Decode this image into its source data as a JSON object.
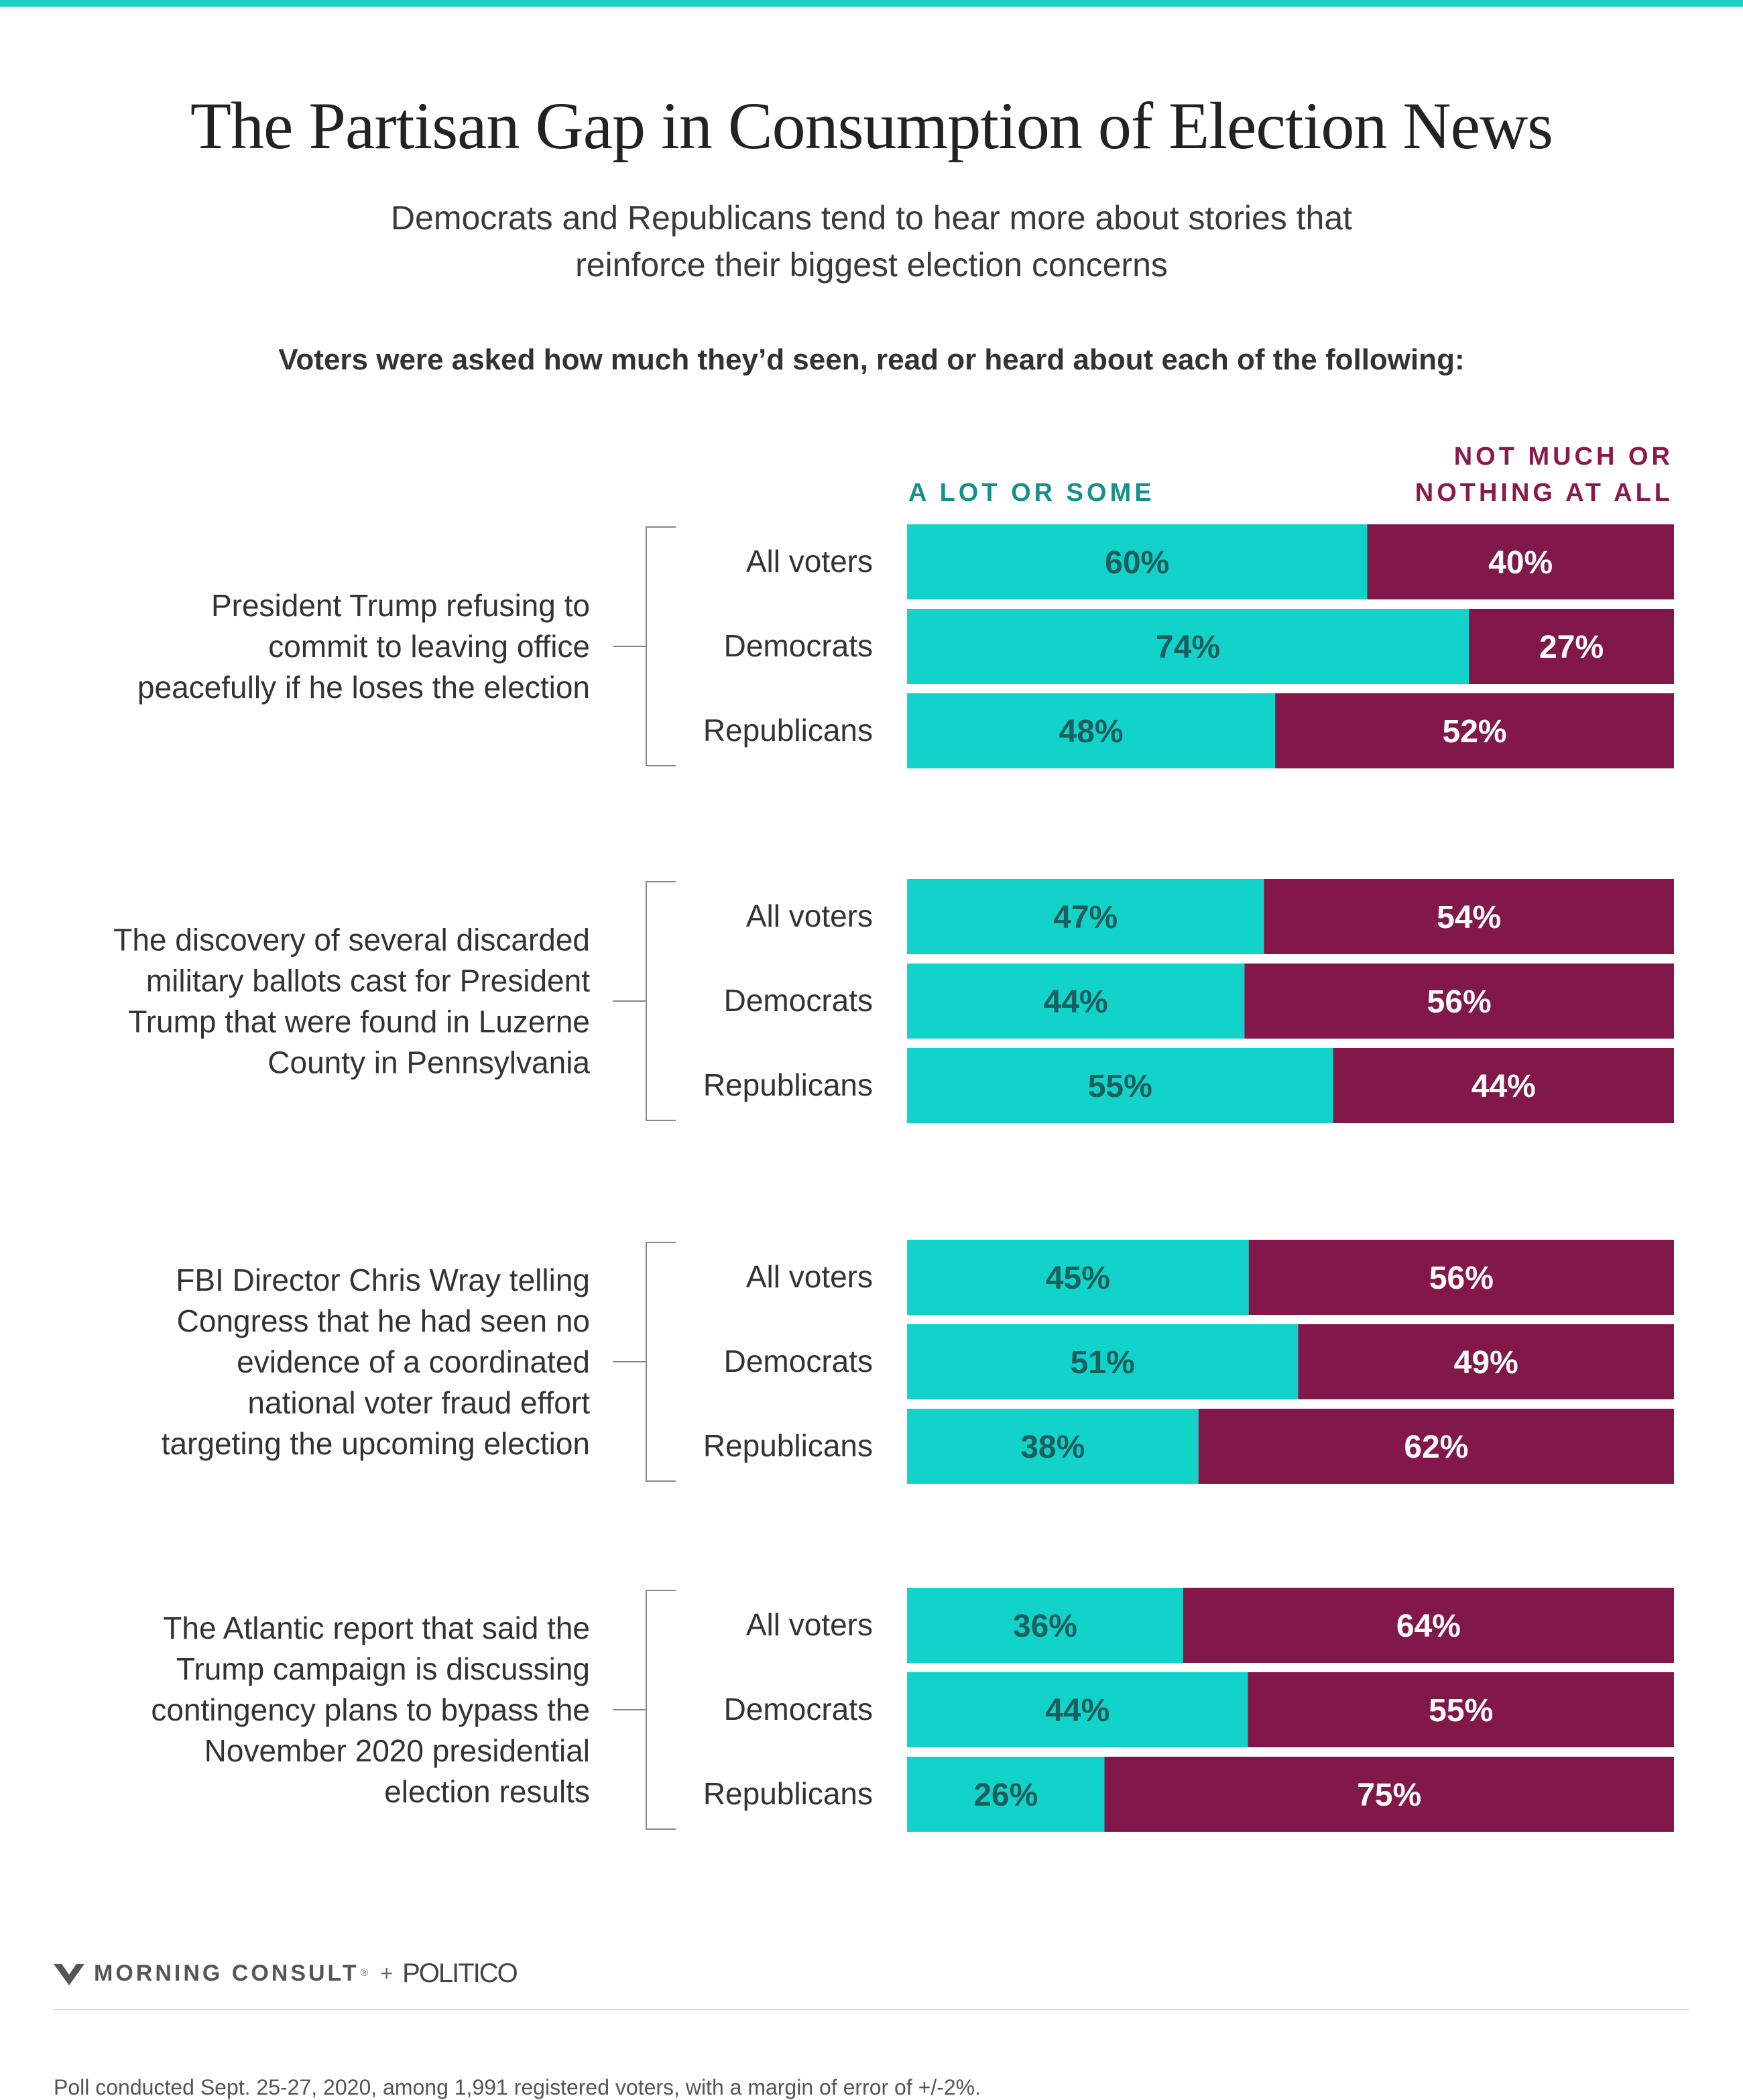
{
  "title": "The Partisan Gap in Consumption of Election News",
  "subtitle": "Democrats and Republicans tend to hear more about stories that reinforce their biggest election concerns",
  "instruction": "Voters were asked how much they’d seen, read or heard about each of the following:",
  "legend": {
    "a_lot": "A LOT OR SOME",
    "not_much": "NOT MUCH OR\nNOTHING AT ALL"
  },
  "colors": {
    "a_lot": "#12d3ca",
    "not_much": "#82184a",
    "a_lot_label": "#15918c",
    "not_much_label": "#8b1a4a",
    "a_lot_value_text": "#1b5e5b",
    "not_much_value_text": "#ffffff"
  },
  "chart_data": {
    "type": "bar",
    "stacked": true,
    "orientation": "horizontal",
    "series_names": [
      "A LOT OR SOME",
      "NOT MUCH OR NOTHING AT ALL"
    ],
    "groups": [
      {
        "label": "President Trump refusing to commit to leaving office peacefully if he loses the election",
        "label_lines": [
          "President Trump refusing to",
          "commit to leaving office",
          "peacefully if he loses the election"
        ],
        "rows": [
          {
            "category": "All voters",
            "a_lot": 60,
            "not_much": 40
          },
          {
            "category": "Democrats",
            "a_lot": 74,
            "not_much": 27
          },
          {
            "category": "Republicans",
            "a_lot": 48,
            "not_much": 52
          }
        ]
      },
      {
        "label": "The discovery of several discarded military ballots cast for President Trump that were found in Luzerne County in Pennsylvania",
        "label_lines": [
          "The discovery of several discarded",
          "military ballots cast for President",
          "Trump that were found in Luzerne",
          "County in Pennsylvania"
        ],
        "rows": [
          {
            "category": "All voters",
            "a_lot": 47,
            "not_much": 54
          },
          {
            "category": "Democrats",
            "a_lot": 44,
            "not_much": 56
          },
          {
            "category": "Republicans",
            "a_lot": 55,
            "not_much": 44
          }
        ]
      },
      {
        "label": "FBI Director Chris Wray telling Congress that he had seen no evidence of a coordinated national voter fraud effort targeting the upcoming election",
        "label_lines": [
          "FBI Director Chris Wray telling",
          "Congress that he had seen no",
          "evidence of a coordinated",
          "national voter fraud effort",
          "targeting the upcoming election"
        ],
        "rows": [
          {
            "category": "All voters",
            "a_lot": 45,
            "not_much": 56
          },
          {
            "category": "Democrats",
            "a_lot": 51,
            "not_much": 49
          },
          {
            "category": "Republicans",
            "a_lot": 38,
            "not_much": 62
          }
        ]
      },
      {
        "label": "The Atlantic report that said the Trump campaign is discussing contingency plans to bypass the November 2020 presidential election results",
        "label_lines": [
          "The Atlantic report that said the",
          "Trump campaign is discussing",
          "contingency plans to bypass the",
          "November 2020 presidential",
          "election results"
        ],
        "rows": [
          {
            "category": "All voters",
            "a_lot": 36,
            "not_much": 64
          },
          {
            "category": "Democrats",
            "a_lot": 44,
            "not_much": 55
          },
          {
            "category": "Republicans",
            "a_lot": 26,
            "not_much": 75
          }
        ]
      }
    ]
  },
  "footer": {
    "brand1": "MORNING CONSULT",
    "registered_mark": "®",
    "plus": "+",
    "brand2": "POLITICO",
    "note": "Poll conducted Sept. 25-27, 2020, among 1,991 registered voters, with a margin of error of +/-2%."
  }
}
